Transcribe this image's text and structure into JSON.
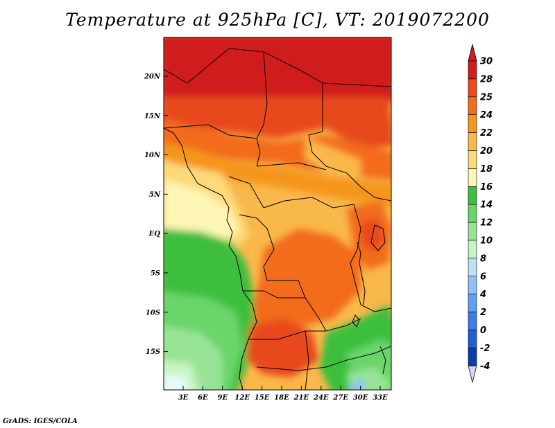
{
  "title": "Temperature at 925hPa [C], VT: 2019072200",
  "footer": "GrADS: IGES/COLA",
  "map": {
    "lat_labels": [
      "20N",
      "15N",
      "10N",
      "5N",
      "EQ",
      "5S",
      "10S",
      "15S"
    ],
    "lon_labels": [
      "3E",
      "6E",
      "9E",
      "12E",
      "15E",
      "18E",
      "21E",
      "24E",
      "27E",
      "30E",
      "33E"
    ]
  },
  "colorbar": {
    "labels": [
      "30",
      "28",
      "25",
      "24",
      "22",
      "20",
      "18",
      "16",
      "14",
      "12",
      "10",
      "8",
      "6",
      "4",
      "2",
      "0",
      "-2",
      "-4"
    ],
    "colors": [
      "#d01e1e",
      "#e84a1c",
      "#f26c1e",
      "#f5961f",
      "#f9b84a",
      "#fcd97a",
      "#fcf5b4",
      "#3cbf3c",
      "#6ad56a",
      "#98e396",
      "#c8f4c3",
      "#bde0f7",
      "#8fc3f5",
      "#5d9ff0",
      "#3c7ee6",
      "#1e5fd6",
      "#0d3ba8",
      "#0a1a70"
    ],
    "top_color": "#d7191c",
    "bottom_color": "#d6d6f0"
  }
}
